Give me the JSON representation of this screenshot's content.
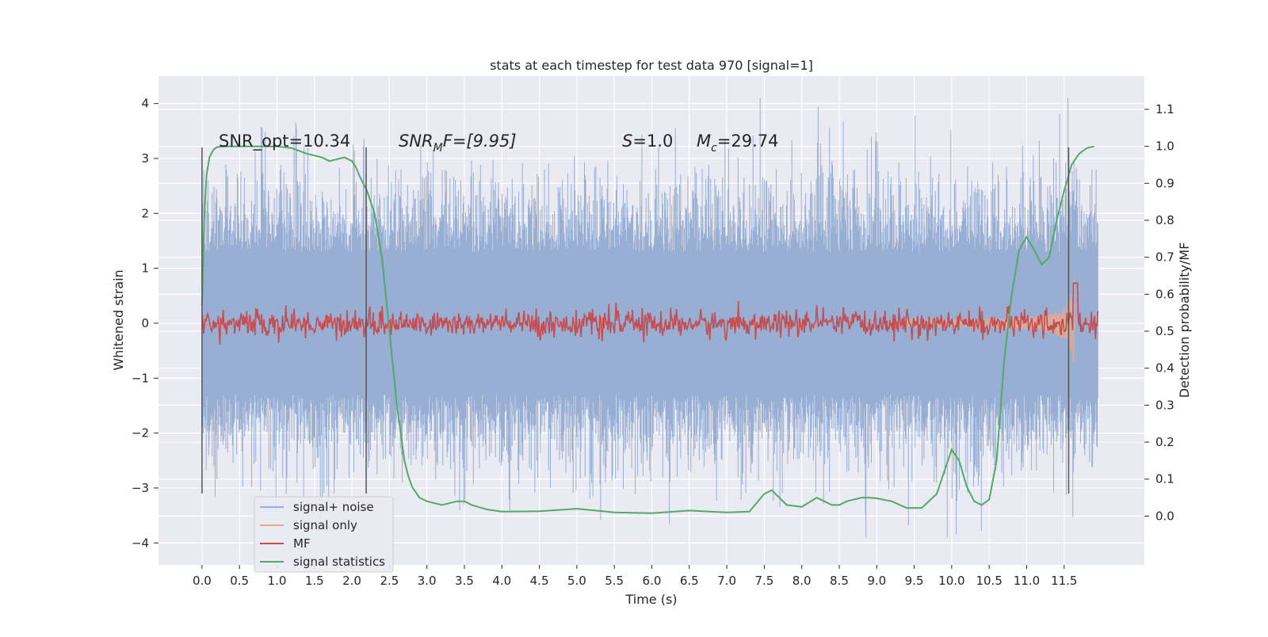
{
  "chart_data": {
    "type": "line",
    "title": "stats at each timestep for test data 970 [signal=1]",
    "xlabel": "Time (s)",
    "ylabel": "Whitened strain",
    "y2label": "Detection probability/MF",
    "xlim": [
      -0.58,
      12.57
    ],
    "ylim": [
      -4.4,
      4.5
    ],
    "y2lim": [
      -0.132,
      1.19
    ],
    "grid": true,
    "x_ticks": [
      0.0,
      0.5,
      1.0,
      1.5,
      2.0,
      2.5,
      3.0,
      3.5,
      4.0,
      4.5,
      5.0,
      5.5,
      6.0,
      6.5,
      7.0,
      7.5,
      8.0,
      8.5,
      9.0,
      9.5,
      10.0,
      10.5,
      11.0,
      11.5
    ],
    "x_tick_labels": [
      "0.0",
      "0.5",
      "1.0",
      "1.5",
      "2.0",
      "2.5",
      "3.0",
      "3.5",
      "4.0",
      "4.5",
      "5.0",
      "5.5",
      "6.0",
      "6.5",
      "7.0",
      "7.5",
      "8.0",
      "8.5",
      "9.0",
      "9.5",
      "10.0",
      "10.5",
      "11.0",
      "11.5"
    ],
    "y_ticks": [
      4,
      3,
      2,
      1,
      0,
      -1,
      -2,
      -3,
      -4
    ],
    "y_tick_labels": [
      "4",
      "3",
      "2",
      "1",
      "0",
      "−1",
      "−2",
      "−3",
      "−4"
    ],
    "y2_ticks": [
      1.1,
      1.0,
      0.9,
      0.8,
      0.7,
      0.6,
      0.5,
      0.4,
      0.3,
      0.2,
      0.1,
      0.0
    ],
    "y2_tick_labels": [
      "1.1",
      "1.0",
      "0.9",
      "0.8",
      "0.7",
      "0.6",
      "0.5",
      "0.4",
      "0.3",
      "0.2",
      "0.1",
      "0.0"
    ],
    "annotations": {
      "snr_opt": "SNR_opt=10.34",
      "snr_mf_name": "SNR",
      "snr_mf_sub": "M",
      "snr_mf_rest": "F=[9.95]",
      "s_name": "S",
      "s_value": "=1.0",
      "mc_name": "M",
      "mc_sub": "c",
      "mc_value": "=29.74"
    },
    "vlines_x": [
      0.0,
      2.19,
      11.56
    ],
    "vline_range": [
      -3.1,
      3.2
    ],
    "legend": {
      "placement": "lower-left",
      "entries": [
        "signal+ noise",
        "signal only",
        "MF",
        "signal statistics"
      ]
    },
    "colors": {
      "noise": "#98aed3",
      "signal": "#e8a88e",
      "mf": "#c44e52",
      "stats": "#55a868",
      "vline": "#555555",
      "bg": "#eaeaf2",
      "grid": "#ffffff"
    },
    "noise_extent": [
      0.0,
      11.95
    ],
    "noise_band": [
      -1.3,
      1.3
    ],
    "mf_level": 0.52,
    "signal_chirp_end": 11.66,
    "series_stats": {
      "name": "signal statistics",
      "x": [
        0.0,
        0.03,
        0.06,
        0.1,
        0.15,
        0.2,
        0.3,
        0.5,
        0.8,
        1.0,
        1.2,
        1.4,
        1.5,
        1.6,
        1.7,
        1.8,
        1.9,
        2.0,
        2.05,
        2.1,
        2.2,
        2.3,
        2.4,
        2.5,
        2.6,
        2.7,
        2.75,
        2.8,
        2.9,
        3.0,
        3.2,
        3.4,
        3.5,
        3.6,
        3.8,
        4.0,
        4.5,
        5.0,
        5.5,
        6.0,
        6.5,
        7.0,
        7.3,
        7.5,
        7.6,
        7.7,
        7.8,
        8.0,
        8.2,
        8.3,
        8.4,
        8.5,
        8.6,
        8.8,
        8.9,
        9.0,
        9.2,
        9.4,
        9.6,
        9.8,
        9.9,
        10.0,
        10.1,
        10.2,
        10.3,
        10.4,
        10.5,
        10.6,
        10.7,
        10.8,
        10.9,
        11.0,
        11.1,
        11.2,
        11.3,
        11.4,
        11.5,
        11.6,
        11.7,
        11.8,
        11.9
      ],
      "y": [
        0.57,
        0.8,
        0.92,
        0.97,
        0.99,
        0.998,
        1.0,
        1.0,
        1.0,
        1.0,
        0.995,
        0.98,
        0.975,
        0.97,
        0.96,
        0.965,
        0.97,
        0.96,
        0.945,
        0.92,
        0.88,
        0.82,
        0.7,
        0.5,
        0.3,
        0.15,
        0.11,
        0.08,
        0.05,
        0.04,
        0.03,
        0.04,
        0.04,
        0.03,
        0.018,
        0.012,
        0.013,
        0.02,
        0.01,
        0.008,
        0.015,
        0.01,
        0.012,
        0.06,
        0.07,
        0.05,
        0.03,
        0.025,
        0.05,
        0.04,
        0.03,
        0.03,
        0.04,
        0.05,
        0.05,
        0.048,
        0.04,
        0.022,
        0.022,
        0.06,
        0.12,
        0.18,
        0.15,
        0.08,
        0.04,
        0.03,
        0.045,
        0.15,
        0.42,
        0.6,
        0.72,
        0.755,
        0.72,
        0.68,
        0.7,
        0.8,
        0.88,
        0.95,
        0.98,
        0.995,
        1.0
      ]
    }
  }
}
